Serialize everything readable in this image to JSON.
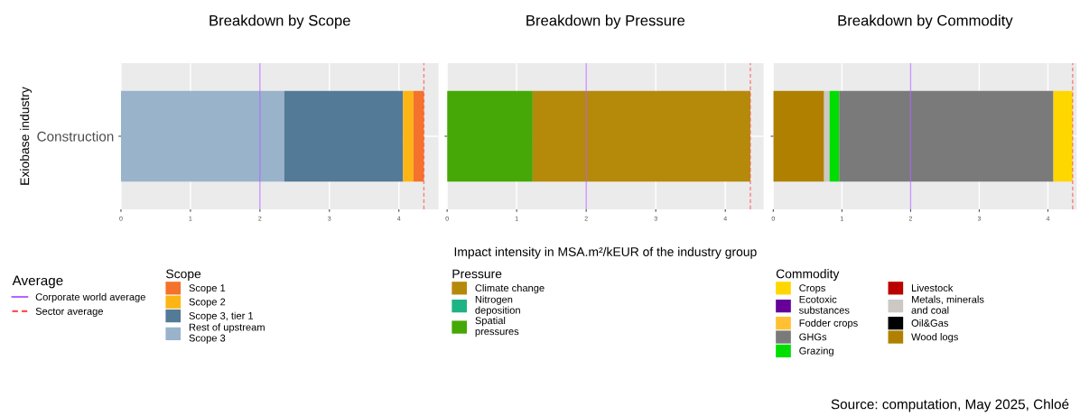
{
  "chart_data": [
    {
      "type": "bar",
      "orientation": "horizontal",
      "stacked": true,
      "title": "Breakdown by Scope",
      "ylabel": "Exiobase industry",
      "categories": [
        "Construction"
      ],
      "legend_title": "Scope",
      "annotations": [
        "Average"
      ],
      "legend": "bottom",
      "grid": true,
      "series": [
        {
          "name": "Rest of upstream\nScope 3",
          "color": "#99b3cb",
          "values": [
            2.35
          ]
        },
        {
          "name": "Scope 3, tier 1",
          "color": "#537a96",
          "values": [
            1.71
          ]
        },
        {
          "name": "Scope 2",
          "color": "#fdb515",
          "values": [
            0.15
          ]
        },
        {
          "name": "Scope 1",
          "color": "#f4722b",
          "values": [
            0.15
          ]
        }
      ],
      "xlim": [
        0,
        4.57
      ],
      "xticks": [
        0,
        1,
        2,
        3,
        4
      ],
      "ref_lines": [
        {
          "axis": "x",
          "value": 2,
          "label": "Corporate world average",
          "color": "#b266ff",
          "line_style": "solid"
        },
        {
          "axis": "x",
          "value": 4.36,
          "label": "Sector average",
          "color": "#ff5050",
          "line_style": "dashed"
        }
      ]
    },
    {
      "type": "bar",
      "orientation": "horizontal",
      "stacked": true,
      "title": "Breakdown by Pressure",
      "xlabel": "Impact intensity in MSA.m²/kEUR of the industry group",
      "categories": [
        null
      ],
      "tick_labels": "x",
      "legend_title": "Pressure",
      "legend": "bottom",
      "grid": true,
      "series": [
        {
          "name": "Spatial\npressures",
          "color": "#46a806",
          "values": [
            1.23
          ]
        },
        {
          "name": "Nitrogen\ndeposition",
          "color": "#1db385",
          "values": [
            0
          ]
        },
        {
          "name": "Climate change",
          "color": "#b5890a",
          "values": [
            3.13
          ]
        }
      ],
      "xlim": [
        0,
        4.55
      ],
      "xticks": [
        0,
        1,
        2,
        3,
        4
      ],
      "ref_lines": [
        {
          "axis": "x",
          "value": 2,
          "color": "#b266ff",
          "line_style": "solid"
        },
        {
          "axis": "x",
          "value": 4.36,
          "color": "#ff5050",
          "line_style": "dashed"
        }
      ]
    },
    {
      "type": "bar",
      "orientation": "horizontal",
      "stacked": true,
      "title": "Breakdown by Commodity",
      "categories": [
        null
      ],
      "tick_labels": "x",
      "legend_title": "Commodity",
      "legend": "bottom",
      "grid": true,
      "annotations": [
        "Source: computation, May 2025, Chloé"
      ],
      "series": [
        {
          "name": "Wood logs",
          "color": "#b08000",
          "values": [
            0.74
          ]
        },
        {
          "name": "Oil&Gas",
          "color": "#000000",
          "values": [
            0
          ]
        },
        {
          "name": "Metals, minerals\nand coal",
          "color": "#cbc8c6",
          "values": [
            0.08
          ]
        },
        {
          "name": "Livestock",
          "color": "#bb0000",
          "values": [
            0
          ]
        },
        {
          "name": "Grazing",
          "color": "#00dd00",
          "values": [
            0.14
          ]
        },
        {
          "name": "GHGs",
          "color": "#7a7a7a",
          "values": [
            3.12
          ]
        },
        {
          "name": "Fodder crops",
          "color": "#ffc033",
          "values": [
            0
          ]
        },
        {
          "name": "Ecotoxic\nsubstances",
          "color": "#660099",
          "values": [
            0
          ]
        },
        {
          "name": "Crops",
          "color": "#ffd700",
          "values": [
            0.28
          ]
        }
      ],
      "xlim": [
        0,
        4.42
      ],
      "xticks": [
        0,
        1,
        2,
        3,
        4
      ],
      "ref_lines": [
        {
          "axis": "x",
          "value": 2,
          "color": "#b266ff",
          "line_style": "solid"
        },
        {
          "axis": "x",
          "value": 4.36,
          "color": "#ff5050",
          "line_style": "dashed"
        }
      ]
    }
  ]
}
